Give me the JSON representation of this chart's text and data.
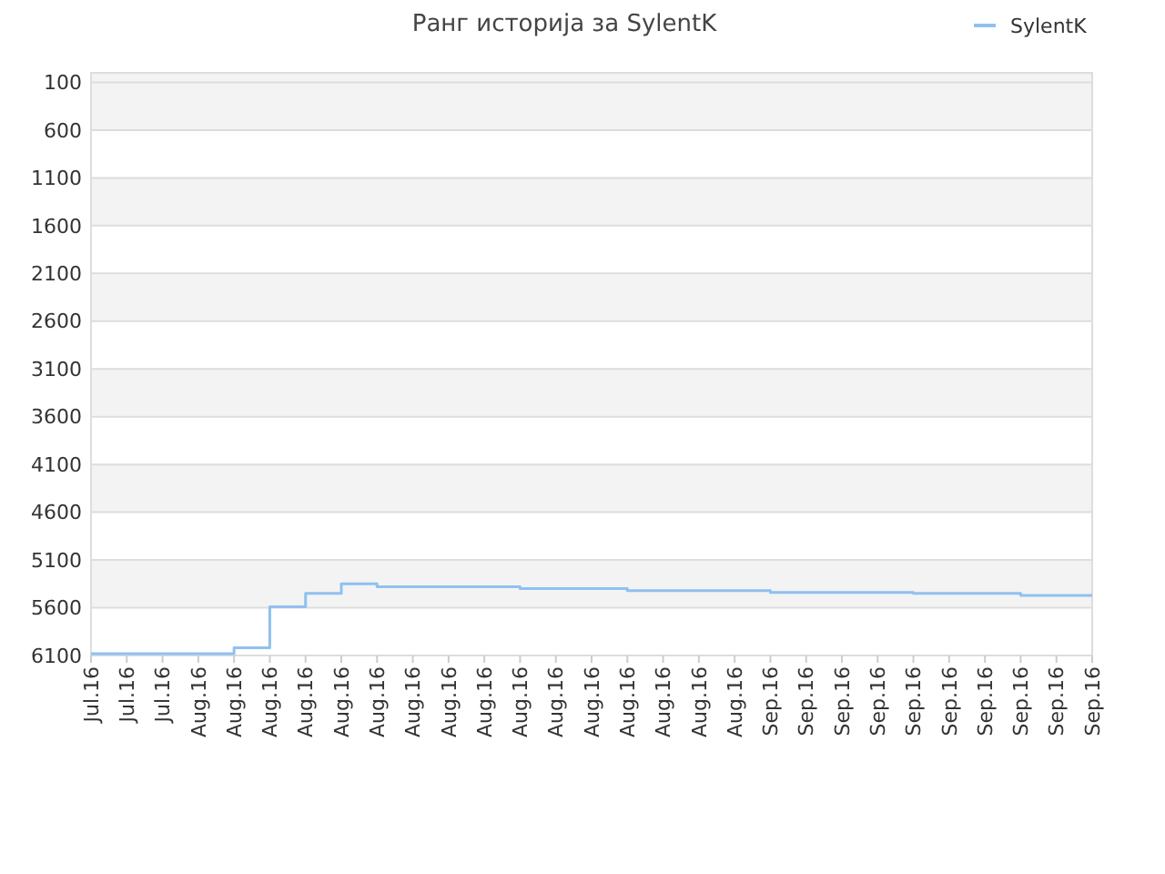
{
  "chart_data": {
    "type": "step",
    "title": "Ранг историја за SylentK",
    "legend": "top right",
    "grid": "y",
    "categories": [
      "Jul.16",
      "Jul.16",
      "Jul.16",
      "Aug.16",
      "Aug.16",
      "Aug.16",
      "Aug.16",
      "Aug.16",
      "Aug.16",
      "Aug.16",
      "Aug.16",
      "Aug.16",
      "Aug.16",
      "Aug.16",
      "Aug.16",
      "Aug.16",
      "Aug.16",
      "Aug.16",
      "Aug.16",
      "Sep.16",
      "Sep.16",
      "Sep.16",
      "Sep.16",
      "Sep.16",
      "Sep.16",
      "Sep.16",
      "Sep.16",
      "Sep.16",
      "Sep.16"
    ],
    "ylim": [
      6100,
      0
    ],
    "yticks": [
      100,
      600,
      1100,
      1600,
      2100,
      2600,
      3100,
      3600,
      4100,
      4600,
      5100,
      5600,
      6100
    ],
    "series": [
      {
        "name": "SylentK",
        "color": "#90c0f0",
        "values": [
          6080,
          6080,
          6080,
          6080,
          6020,
          5590,
          5450,
          5350,
          5380,
          5380,
          5380,
          5380,
          5400,
          5400,
          5400,
          5420,
          5420,
          5420,
          5420,
          5440,
          5440,
          5440,
          5440,
          5450,
          5450,
          5450,
          5470,
          5470,
          5470
        ]
      }
    ]
  }
}
